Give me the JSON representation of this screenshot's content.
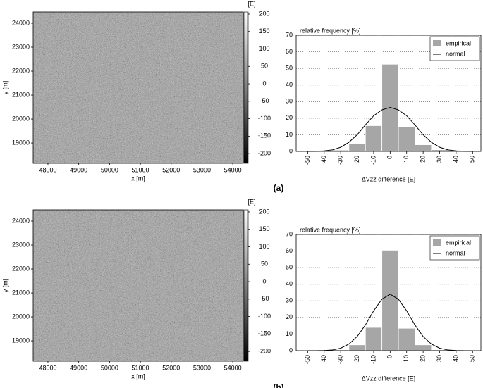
{
  "chart_data": [
    {
      "type": "image",
      "xlabel": "x [m]",
      "ylabel": "y [m]",
      "xlim": [
        47520,
        54340
      ],
      "xticks": [
        48000,
        49000,
        50000,
        51000,
        52000,
        53000,
        54000
      ],
      "ylim": [
        18150,
        24470
      ],
      "yticks": [
        19000,
        20000,
        21000,
        22000,
        23000,
        24000
      ],
      "colorbar": {
        "label": "[E]",
        "lim": [
          -228,
          206
        ],
        "ticks": [
          -200,
          -150,
          -100,
          -50,
          0,
          50,
          100,
          150,
          200
        ]
      }
    },
    {
      "type": "histogram",
      "panel_label": "(a)",
      "ylabel": "relative frequency [%]",
      "xlabel": "ΔVzz difference [E]",
      "xlim": [
        -57,
        55
      ],
      "xticks": [
        -50,
        -40,
        -30,
        -20,
        -10,
        0,
        10,
        20,
        30,
        40,
        50
      ],
      "ylim": [
        0,
        70
      ],
      "yticks": [
        0,
        10,
        20,
        30,
        40,
        50,
        60,
        70
      ],
      "grid": "y",
      "legend": "upper right",
      "series": [
        {
          "name": "empirical",
          "color": "#a6a6a6",
          "bins": [
            -45,
            -35,
            -25,
            -15,
            -5,
            5,
            15,
            25,
            35,
            45
          ],
          "values": [
            0.2,
            0.8,
            4.5,
            15.5,
            52.5,
            15,
            4,
            1,
            0.3
          ]
        },
        {
          "name": "normal",
          "color": "#000000",
          "x": [
            -50,
            -45,
            -40,
            -35,
            -30,
            -25,
            -20,
            -15,
            -10,
            -5,
            0,
            5,
            10,
            15,
            20,
            25,
            30,
            35,
            40,
            45,
            50
          ],
          "values": [
            0,
            0.1,
            0.3,
            0.9,
            2.5,
            5.5,
            10,
            16,
            21.5,
            25,
            26.5,
            25,
            21.5,
            16,
            10,
            5.5,
            2.5,
            0.9,
            0.3,
            0.1,
            0
          ]
        }
      ]
    },
    {
      "type": "image",
      "xlabel": "x [m]",
      "ylabel": "y [m]",
      "xlim": [
        47520,
        54340
      ],
      "xticks": [
        48000,
        49000,
        50000,
        51000,
        52000,
        53000,
        54000
      ],
      "ylim": [
        18150,
        24470
      ],
      "yticks": [
        19000,
        20000,
        21000,
        22000,
        23000,
        24000
      ],
      "colorbar": {
        "label": "[E]",
        "lim": [
          -228,
          206
        ],
        "ticks": [
          -200,
          -150,
          -100,
          -50,
          0,
          50,
          100,
          150,
          200
        ]
      }
    },
    {
      "type": "histogram",
      "panel_label": "(b)",
      "ylabel": "relative frequency [%]",
      "xlabel": "ΔVzz difference [E]",
      "xlim": [
        -57,
        55
      ],
      "xticks": [
        -50,
        -40,
        -30,
        -20,
        -10,
        0,
        10,
        20,
        30,
        40,
        50
      ],
      "ylim": [
        0,
        70
      ],
      "yticks": [
        0,
        10,
        20,
        30,
        40,
        50,
        60,
        70
      ],
      "grid": "y",
      "legend": "upper right",
      "series": [
        {
          "name": "empirical",
          "color": "#a6a6a6",
          "bins": [
            -45,
            -35,
            -25,
            -15,
            -5,
            5,
            15,
            25,
            35,
            45
          ],
          "values": [
            0.1,
            0.5,
            3.5,
            14,
            60.5,
            13.5,
            3.5,
            0.5,
            0.1
          ]
        },
        {
          "name": "normal",
          "color": "#000000",
          "x": [
            -50,
            -45,
            -40,
            -35,
            -30,
            -25,
            -20,
            -15,
            -10,
            -5,
            0,
            5,
            10,
            15,
            20,
            25,
            30,
            35,
            40,
            45,
            50
          ],
          "values": [
            0,
            0,
            0.1,
            0.4,
            1.5,
            4,
            8.5,
            15.5,
            24,
            31,
            34,
            31,
            24,
            15.5,
            8.5,
            4,
            1.5,
            0.4,
            0.1,
            0,
            0
          ]
        }
      ]
    }
  ]
}
